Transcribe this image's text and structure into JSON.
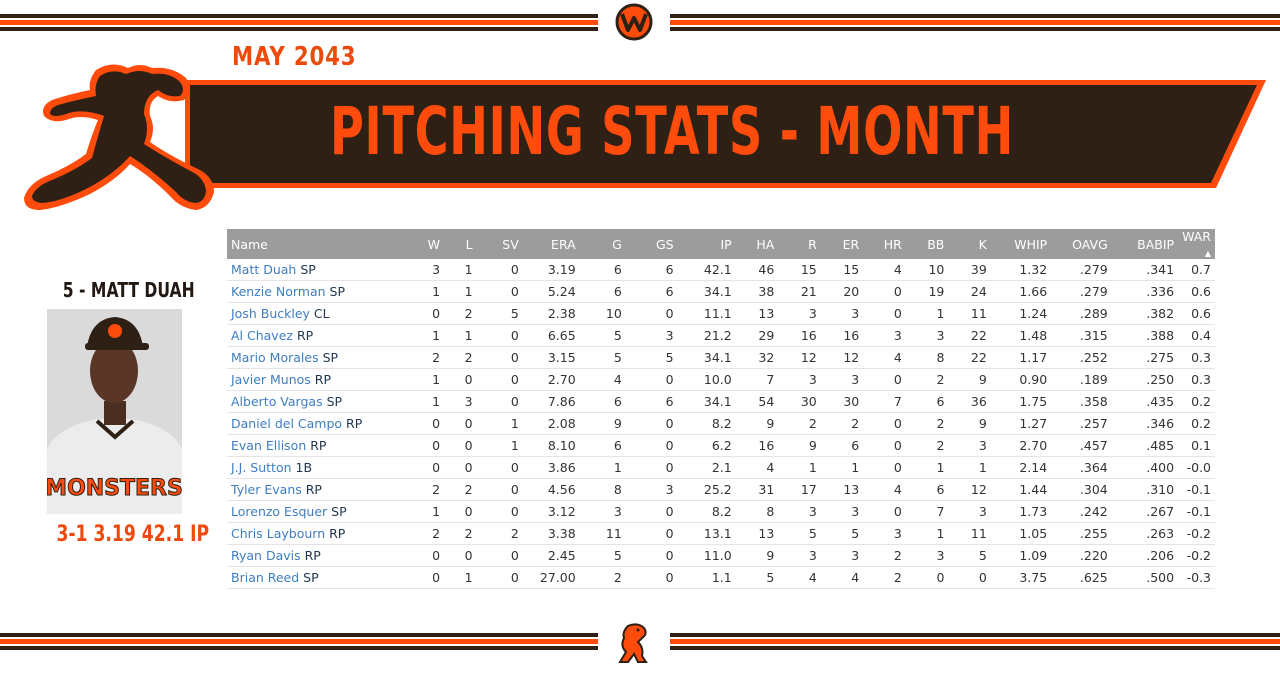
{
  "header": {
    "date": "MAY  2043",
    "title": "PITCHING STATS - MONTH"
  },
  "colors": {
    "accent": "#ff4c0c",
    "dark": "#2e2014",
    "header_gray": "#9c9c9c",
    "link": "#3f7ec0"
  },
  "featured": {
    "name": "5 - MATT DUAH",
    "line": "3-1  3.19  42.1 IP",
    "jersey_text": "MONSTERS"
  },
  "table": {
    "columns": [
      "Name",
      "W",
      "L",
      "SV",
      "ERA",
      "G",
      "GS",
      "IP",
      "HA",
      "R",
      "ER",
      "HR",
      "BB",
      "K",
      "WHIP",
      "OAVG",
      "BABIP",
      "WAR"
    ],
    "sort_indicator": "▲",
    "rows": [
      {
        "name": "Matt Duah",
        "pos": "SP",
        "stats": [
          "3",
          "1",
          "0",
          "3.19",
          "6",
          "6",
          "42.1",
          "46",
          "15",
          "15",
          "4",
          "10",
          "39",
          "1.32",
          ".279",
          ".341",
          "0.7"
        ]
      },
      {
        "name": "Kenzie Norman",
        "pos": "SP",
        "stats": [
          "1",
          "1",
          "0",
          "5.24",
          "6",
          "6",
          "34.1",
          "38",
          "21",
          "20",
          "0",
          "19",
          "24",
          "1.66",
          ".279",
          ".336",
          "0.6"
        ]
      },
      {
        "name": "Josh Buckley",
        "pos": "CL",
        "stats": [
          "0",
          "2",
          "5",
          "2.38",
          "10",
          "0",
          "11.1",
          "13",
          "3",
          "3",
          "0",
          "1",
          "11",
          "1.24",
          ".289",
          ".382",
          "0.6"
        ]
      },
      {
        "name": "Al Chavez",
        "pos": "RP",
        "stats": [
          "1",
          "1",
          "0",
          "6.65",
          "5",
          "3",
          "21.2",
          "29",
          "16",
          "16",
          "3",
          "3",
          "22",
          "1.48",
          ".315",
          ".388",
          "0.4"
        ]
      },
      {
        "name": "Mario Morales",
        "pos": "SP",
        "stats": [
          "2",
          "2",
          "0",
          "3.15",
          "5",
          "5",
          "34.1",
          "32",
          "12",
          "12",
          "4",
          "8",
          "22",
          "1.17",
          ".252",
          ".275",
          "0.3"
        ]
      },
      {
        "name": "Javier Munos",
        "pos": "RP",
        "stats": [
          "1",
          "0",
          "0",
          "2.70",
          "4",
          "0",
          "10.0",
          "7",
          "3",
          "3",
          "0",
          "2",
          "9",
          "0.90",
          ".189",
          ".250",
          "0.3"
        ]
      },
      {
        "name": "Alberto Vargas",
        "pos": "SP",
        "stats": [
          "1",
          "3",
          "0",
          "7.86",
          "6",
          "6",
          "34.1",
          "54",
          "30",
          "30",
          "7",
          "6",
          "36",
          "1.75",
          ".358",
          ".435",
          "0.2"
        ]
      },
      {
        "name": "Daniel del Campo",
        "pos": "RP",
        "stats": [
          "0",
          "0",
          "1",
          "2.08",
          "9",
          "0",
          "8.2",
          "9",
          "2",
          "2",
          "0",
          "2",
          "9",
          "1.27",
          ".257",
          ".346",
          "0.2"
        ]
      },
      {
        "name": "Evan Ellison",
        "pos": "RP",
        "stats": [
          "0",
          "0",
          "1",
          "8.10",
          "6",
          "0",
          "6.2",
          "16",
          "9",
          "6",
          "0",
          "2",
          "3",
          "2.70",
          ".457",
          ".485",
          "0.1"
        ]
      },
      {
        "name": "J.J. Sutton",
        "pos": "1B",
        "stats": [
          "0",
          "0",
          "0",
          "3.86",
          "1",
          "0",
          "2.1",
          "4",
          "1",
          "1",
          "0",
          "1",
          "1",
          "2.14",
          ".364",
          ".400",
          "-0.0"
        ]
      },
      {
        "name": "Tyler Evans",
        "pos": "RP",
        "stats": [
          "2",
          "2",
          "0",
          "4.56",
          "8",
          "3",
          "25.2",
          "31",
          "17",
          "13",
          "4",
          "6",
          "12",
          "1.44",
          ".304",
          ".310",
          "-0.1"
        ]
      },
      {
        "name": "Lorenzo Esquer",
        "pos": "SP",
        "stats": [
          "1",
          "0",
          "0",
          "3.12",
          "3",
          "0",
          "8.2",
          "8",
          "3",
          "3",
          "0",
          "7",
          "3",
          "1.73",
          ".242",
          ".267",
          "-0.1"
        ]
      },
      {
        "name": "Chris Laybourn",
        "pos": "RP",
        "stats": [
          "2",
          "2",
          "2",
          "3.38",
          "11",
          "0",
          "13.1",
          "13",
          "5",
          "5",
          "3",
          "1",
          "11",
          "1.05",
          ".255",
          ".263",
          "-0.2"
        ]
      },
      {
        "name": "Ryan Davis",
        "pos": "RP",
        "stats": [
          "0",
          "0",
          "0",
          "2.45",
          "5",
          "0",
          "11.0",
          "9",
          "3",
          "3",
          "2",
          "3",
          "5",
          "1.09",
          ".220",
          ".206",
          "-0.2"
        ]
      },
      {
        "name": "Brian Reed",
        "pos": "SP",
        "stats": [
          "0",
          "1",
          "0",
          "27.00",
          "2",
          "0",
          "1.1",
          "5",
          "4",
          "4",
          "2",
          "0",
          "0",
          "3.75",
          ".625",
          ".500",
          "-0.3"
        ]
      }
    ]
  }
}
